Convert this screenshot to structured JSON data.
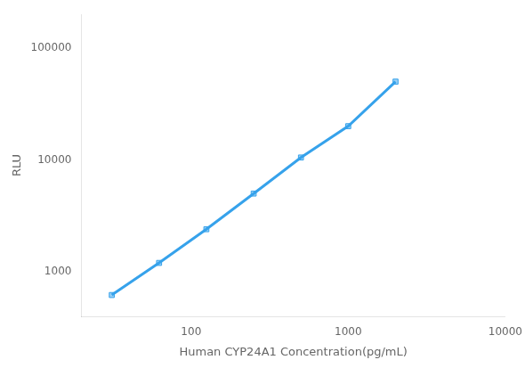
{
  "chart_data": {
    "type": "line",
    "x": [
      31.25,
      62.5,
      125,
      250,
      500,
      1000,
      2000
    ],
    "values": [
      620,
      1200,
      2400,
      5000,
      10500,
      20000,
      50000
    ],
    "xlabel": "Human CYP24A1 Concentration(pg/mL)",
    "ylabel": "RLU",
    "log": true,
    "xlim": [
      20,
      10000
    ],
    "ylim": [
      400,
      200000
    ],
    "xticks": [
      100,
      1000,
      10000
    ],
    "yticks": [
      1000,
      10000,
      100000
    ],
    "grid": false,
    "marker": "square"
  }
}
